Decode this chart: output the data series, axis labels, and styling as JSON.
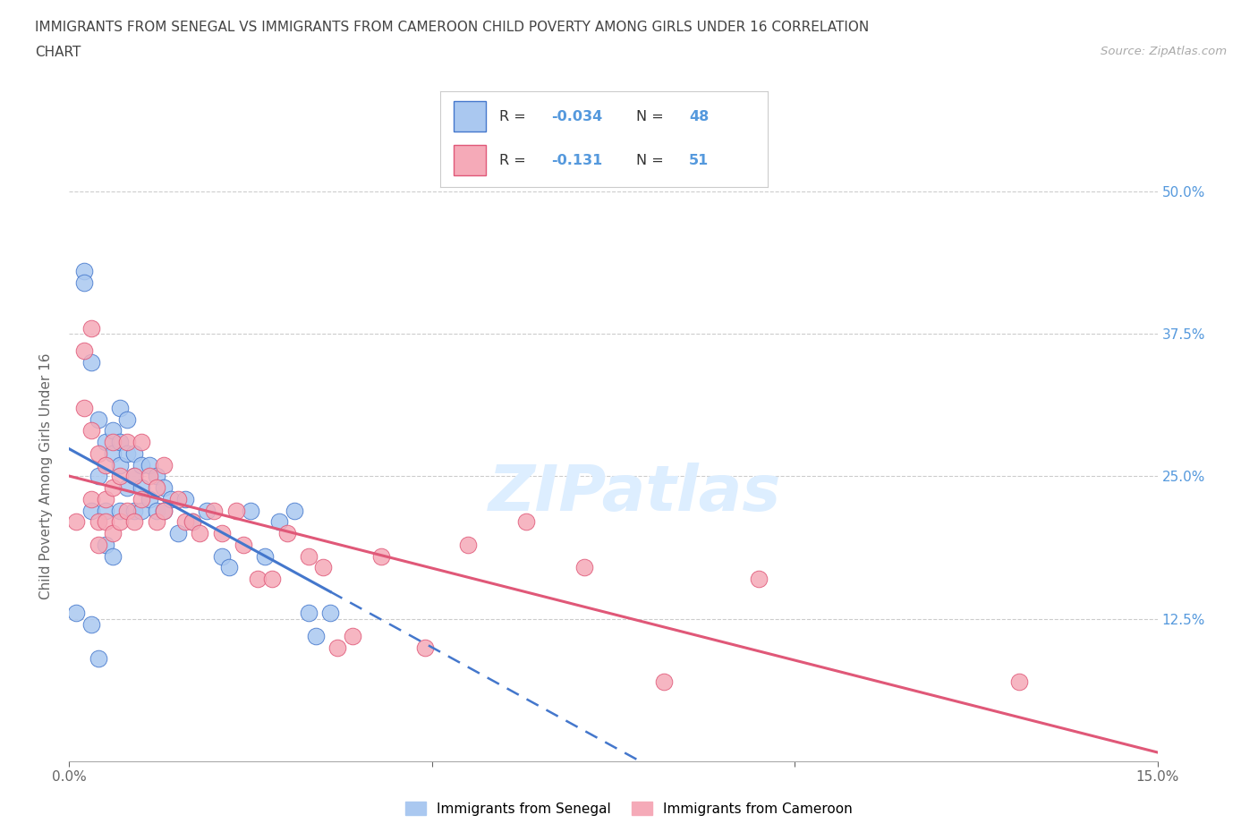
{
  "title_line1": "IMMIGRANTS FROM SENEGAL VS IMMIGRANTS FROM CAMEROON CHILD POVERTY AMONG GIRLS UNDER 16 CORRELATION",
  "title_line2": "CHART",
  "source_text": "Source: ZipAtlas.com",
  "ylabel": "Child Poverty Among Girls Under 16",
  "xlim": [
    0.0,
    0.15
  ],
  "ylim": [
    0.0,
    0.5
  ],
  "ytick_labels_right": [
    "50.0%",
    "37.5%",
    "25.0%",
    "12.5%"
  ],
  "ytick_vals_right": [
    0.5,
    0.375,
    0.25,
    0.125
  ],
  "senegal_color": "#aac8f0",
  "cameroon_color": "#f5aab8",
  "trendline_senegal_color": "#4477cc",
  "trendline_cameroon_color": "#e05878",
  "background_color": "#ffffff",
  "senegal_x": [
    0.001,
    0.002,
    0.002,
    0.003,
    0.003,
    0.003,
    0.004,
    0.004,
    0.004,
    0.005,
    0.005,
    0.005,
    0.006,
    0.006,
    0.006,
    0.007,
    0.007,
    0.007,
    0.007,
    0.008,
    0.008,
    0.008,
    0.009,
    0.009,
    0.009,
    0.01,
    0.01,
    0.01,
    0.011,
    0.011,
    0.012,
    0.012,
    0.013,
    0.013,
    0.014,
    0.015,
    0.016,
    0.017,
    0.019,
    0.021,
    0.022,
    0.025,
    0.027,
    0.029,
    0.031,
    0.033,
    0.034,
    0.036
  ],
  "senegal_y": [
    0.13,
    0.43,
    0.42,
    0.35,
    0.22,
    0.12,
    0.3,
    0.25,
    0.09,
    0.28,
    0.22,
    0.19,
    0.29,
    0.27,
    0.18,
    0.31,
    0.28,
    0.26,
    0.22,
    0.3,
    0.27,
    0.24,
    0.27,
    0.25,
    0.22,
    0.26,
    0.24,
    0.22,
    0.26,
    0.23,
    0.25,
    0.22,
    0.24,
    0.22,
    0.23,
    0.2,
    0.23,
    0.21,
    0.22,
    0.18,
    0.17,
    0.22,
    0.18,
    0.21,
    0.22,
    0.13,
    0.11,
    0.13
  ],
  "cameroon_x": [
    0.001,
    0.002,
    0.002,
    0.003,
    0.003,
    0.003,
    0.004,
    0.004,
    0.004,
    0.005,
    0.005,
    0.005,
    0.006,
    0.006,
    0.006,
    0.007,
    0.007,
    0.008,
    0.008,
    0.009,
    0.009,
    0.01,
    0.01,
    0.011,
    0.012,
    0.012,
    0.013,
    0.013,
    0.015,
    0.016,
    0.017,
    0.018,
    0.02,
    0.021,
    0.023,
    0.024,
    0.026,
    0.028,
    0.03,
    0.033,
    0.035,
    0.037,
    0.039,
    0.043,
    0.049,
    0.055,
    0.063,
    0.071,
    0.082,
    0.095,
    0.131
  ],
  "cameroon_y": [
    0.21,
    0.36,
    0.31,
    0.38,
    0.29,
    0.23,
    0.27,
    0.21,
    0.19,
    0.26,
    0.23,
    0.21,
    0.28,
    0.24,
    0.2,
    0.25,
    0.21,
    0.28,
    0.22,
    0.25,
    0.21,
    0.28,
    0.23,
    0.25,
    0.24,
    0.21,
    0.26,
    0.22,
    0.23,
    0.21,
    0.21,
    0.2,
    0.22,
    0.2,
    0.22,
    0.19,
    0.16,
    0.16,
    0.2,
    0.18,
    0.17,
    0.1,
    0.11,
    0.18,
    0.1,
    0.19,
    0.21,
    0.17,
    0.07,
    0.16,
    0.07
  ]
}
